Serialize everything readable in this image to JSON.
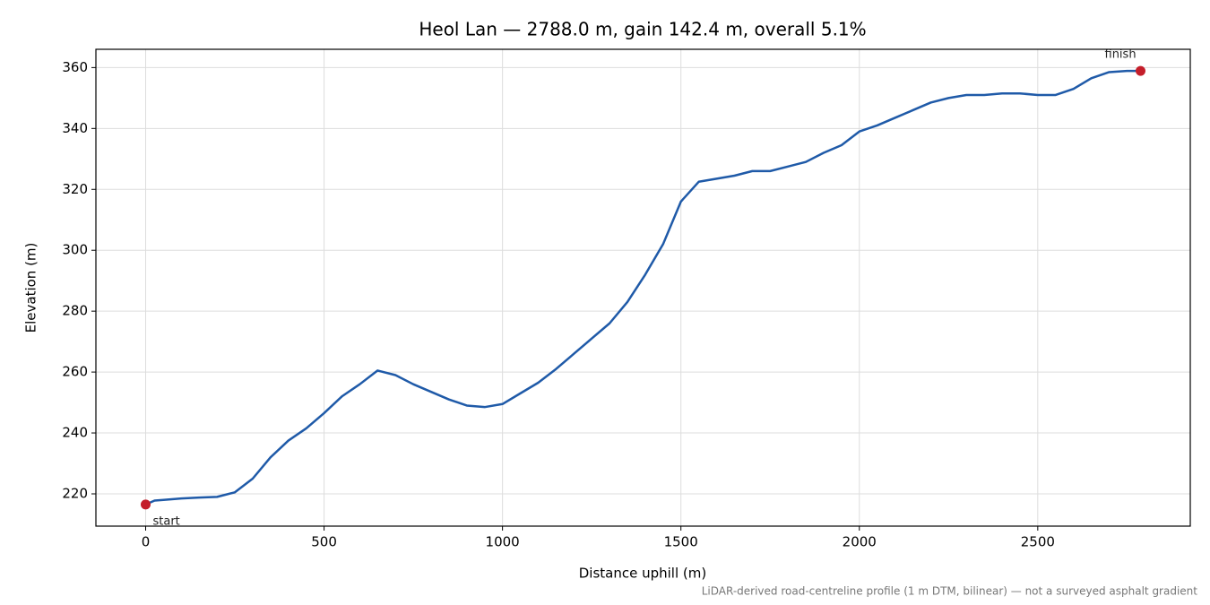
{
  "chart_data": {
    "type": "line",
    "title": "Heol Lan — 2788.0 m, gain 142.4 m, overall 5.1%",
    "x_label": "Distance uphill (m)",
    "y_label": "Elevation (m)",
    "note": "LiDAR-derived road-centreline profile (1 m DTM, bilinear) — not a surveyed asphalt gradient",
    "x": [
      0,
      25,
      50,
      100,
      150,
      200,
      250,
      300,
      350,
      400,
      450,
      500,
      550,
      600,
      650,
      700,
      750,
      800,
      850,
      900,
      950,
      1000,
      1050,
      1100,
      1150,
      1200,
      1250,
      1300,
      1350,
      1400,
      1450,
      1500,
      1550,
      1600,
      1650,
      1700,
      1750,
      1800,
      1850,
      1900,
      1950,
      2000,
      2050,
      2100,
      2150,
      2200,
      2250,
      2300,
      2350,
      2400,
      2450,
      2500,
      2550,
      2600,
      2650,
      2700,
      2750,
      2788
    ],
    "series": [
      {
        "color": "#1f5aa8",
        "values": [
          216.5,
          217.8,
          218,
          218.5,
          218.8,
          219,
          220.5,
          225,
          232,
          237.5,
          241.5,
          246.5,
          252,
          256,
          260.5,
          259,
          256,
          253.5,
          251,
          249,
          248.5,
          249.5,
          253,
          256.5,
          261,
          266,
          271,
          276,
          283,
          292,
          302,
          316,
          322.5,
          323.5,
          324.5,
          326,
          326,
          327.5,
          329,
          332,
          334.5,
          339,
          341,
          343.5,
          346,
          348.5,
          350,
          351,
          351,
          351.5,
          351.5,
          351,
          351,
          353,
          356.5,
          358.5,
          358.9,
          358.9
        ]
      }
    ],
    "annotations": [
      {
        "text": "start",
        "x": 0,
        "y": 216.5,
        "color": "#c41e2a"
      },
      {
        "text": "finish",
        "x": 2788,
        "y": 358.9,
        "color": "#c41e2a"
      }
    ],
    "xlim": [
      -139.4,
      2927.4
    ],
    "ylim": [
      209.4,
      366.0
    ],
    "xticks": [
      0,
      500,
      1000,
      1500,
      2000,
      2500
    ],
    "yticks": [
      220,
      240,
      260,
      280,
      300,
      320,
      340,
      360
    ],
    "grid": true
  }
}
